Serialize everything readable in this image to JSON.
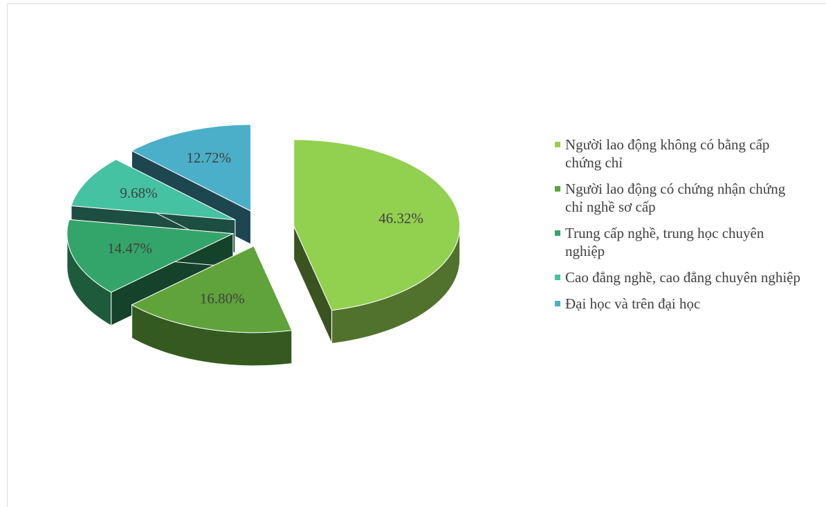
{
  "chart_data": {
    "type": "pie3d",
    "categories": [
      "Người lao động không có bằng cấp chứng chỉ",
      "Người lao động có chứng nhận chứng chỉ nghề sơ cấp",
      "Trung cấp nghề, trung học chuyên nghiệp",
      "Cao đẳng nghề, cao đẳng chuyên nghiệp",
      "Đại học và trên đại học"
    ],
    "values": [
      46.32,
      16.8,
      14.47,
      9.68,
      12.72
    ],
    "value_labels": [
      "46.32%",
      "16.80%",
      "14.47%",
      "9.68%",
      "12.72%"
    ],
    "colors": [
      "#92d050",
      "#5fa33a",
      "#34a56a",
      "#45c2a2",
      "#4bafc9"
    ],
    "legend": "right"
  }
}
